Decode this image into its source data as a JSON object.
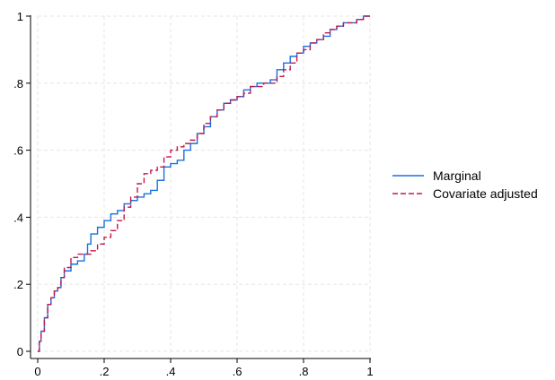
{
  "chart_data": {
    "type": "line",
    "step": true,
    "title": "",
    "xlabel": "",
    "ylabel": "",
    "xlim": [
      0,
      1
    ],
    "ylim": [
      0,
      1
    ],
    "x_ticks": [
      "0",
      ".2",
      ".4",
      ".6",
      ".8",
      "1"
    ],
    "y_ticks": [
      "0",
      ".2",
      ".4",
      ".6",
      ".8",
      "1"
    ],
    "grid": true,
    "legend_position": "right",
    "series": [
      {
        "name": "Marginal",
        "color": "#1a6fdf",
        "dash": "solid",
        "points": [
          [
            0.0,
            0.0
          ],
          [
            0.005,
            0.03
          ],
          [
            0.01,
            0.06
          ],
          [
            0.02,
            0.1
          ],
          [
            0.03,
            0.14
          ],
          [
            0.04,
            0.16
          ],
          [
            0.05,
            0.18
          ],
          [
            0.06,
            0.19
          ],
          [
            0.07,
            0.22
          ],
          [
            0.08,
            0.24
          ],
          [
            0.1,
            0.26
          ],
          [
            0.12,
            0.27
          ],
          [
            0.14,
            0.29
          ],
          [
            0.15,
            0.32
          ],
          [
            0.16,
            0.35
          ],
          [
            0.18,
            0.37
          ],
          [
            0.2,
            0.39
          ],
          [
            0.22,
            0.41
          ],
          [
            0.24,
            0.42
          ],
          [
            0.26,
            0.44
          ],
          [
            0.28,
            0.45
          ],
          [
            0.3,
            0.46
          ],
          [
            0.32,
            0.47
          ],
          [
            0.34,
            0.48
          ],
          [
            0.36,
            0.51
          ],
          [
            0.38,
            0.55
          ],
          [
            0.4,
            0.56
          ],
          [
            0.42,
            0.57
          ],
          [
            0.44,
            0.6
          ],
          [
            0.46,
            0.62
          ],
          [
            0.48,
            0.65
          ],
          [
            0.5,
            0.67
          ],
          [
            0.52,
            0.7
          ],
          [
            0.54,
            0.72
          ],
          [
            0.56,
            0.74
          ],
          [
            0.58,
            0.75
          ],
          [
            0.6,
            0.76
          ],
          [
            0.62,
            0.78
          ],
          [
            0.64,
            0.79
          ],
          [
            0.66,
            0.8
          ],
          [
            0.68,
            0.8
          ],
          [
            0.7,
            0.81
          ],
          [
            0.72,
            0.84
          ],
          [
            0.74,
            0.86
          ],
          [
            0.76,
            0.88
          ],
          [
            0.78,
            0.89
          ],
          [
            0.8,
            0.91
          ],
          [
            0.82,
            0.92
          ],
          [
            0.84,
            0.93
          ],
          [
            0.86,
            0.94
          ],
          [
            0.88,
            0.96
          ],
          [
            0.9,
            0.97
          ],
          [
            0.92,
            0.98
          ],
          [
            0.94,
            0.98
          ],
          [
            0.96,
            0.99
          ],
          [
            0.98,
            1.0
          ],
          [
            1.0,
            1.0
          ]
        ]
      },
      {
        "name": "Covariate adjusted",
        "color": "#c11a4c",
        "dash": "dashed",
        "points": [
          [
            0.0,
            0.0
          ],
          [
            0.005,
            0.03
          ],
          [
            0.01,
            0.06
          ],
          [
            0.02,
            0.1
          ],
          [
            0.03,
            0.14
          ],
          [
            0.04,
            0.16
          ],
          [
            0.05,
            0.18
          ],
          [
            0.06,
            0.19
          ],
          [
            0.07,
            0.22
          ],
          [
            0.08,
            0.25
          ],
          [
            0.1,
            0.28
          ],
          [
            0.12,
            0.29
          ],
          [
            0.14,
            0.29
          ],
          [
            0.16,
            0.3
          ],
          [
            0.18,
            0.32
          ],
          [
            0.2,
            0.34
          ],
          [
            0.22,
            0.36
          ],
          [
            0.24,
            0.39
          ],
          [
            0.26,
            0.43
          ],
          [
            0.28,
            0.46
          ],
          [
            0.3,
            0.5
          ],
          [
            0.32,
            0.53
          ],
          [
            0.34,
            0.54
          ],
          [
            0.36,
            0.55
          ],
          [
            0.38,
            0.58
          ],
          [
            0.4,
            0.6
          ],
          [
            0.42,
            0.61
          ],
          [
            0.44,
            0.62
          ],
          [
            0.46,
            0.63
          ],
          [
            0.48,
            0.65
          ],
          [
            0.5,
            0.68
          ],
          [
            0.52,
            0.7
          ],
          [
            0.54,
            0.72
          ],
          [
            0.56,
            0.74
          ],
          [
            0.58,
            0.75
          ],
          [
            0.6,
            0.76
          ],
          [
            0.62,
            0.77
          ],
          [
            0.64,
            0.79
          ],
          [
            0.66,
            0.79
          ],
          [
            0.68,
            0.8
          ],
          [
            0.7,
            0.8
          ],
          [
            0.72,
            0.82
          ],
          [
            0.74,
            0.84
          ],
          [
            0.76,
            0.86
          ],
          [
            0.78,
            0.89
          ],
          [
            0.8,
            0.9
          ],
          [
            0.82,
            0.92
          ],
          [
            0.84,
            0.93
          ],
          [
            0.86,
            0.95
          ],
          [
            0.88,
            0.96
          ],
          [
            0.9,
            0.97
          ],
          [
            0.92,
            0.98
          ],
          [
            0.94,
            0.98
          ],
          [
            0.96,
            0.99
          ],
          [
            0.98,
            1.0
          ],
          [
            1.0,
            1.0
          ]
        ]
      }
    ]
  }
}
